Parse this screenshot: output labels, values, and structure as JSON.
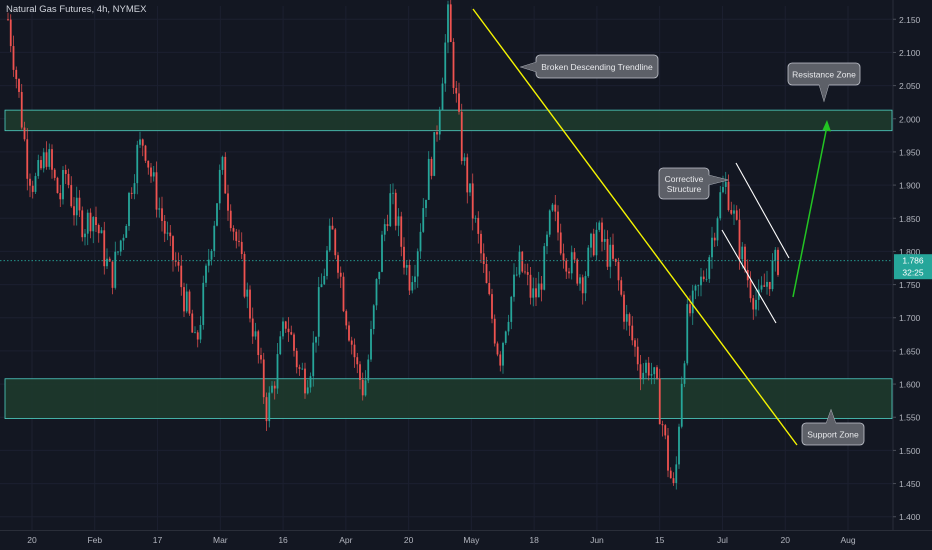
{
  "header": {
    "title": "Natural Gas Futures, 4h, NYMEX"
  },
  "colors": {
    "background": "#131722",
    "up_candle": "#26a69a",
    "down_candle": "#ef5350",
    "zone_fill": "#1e3a2c",
    "zone_border": "#4fd1c5",
    "trendline": "#f5f500",
    "channel": "#ffffff",
    "projection_arrow": "#22c522",
    "price_badge": "#26a69a",
    "callout_bg": "#5d6068"
  },
  "chart_data": {
    "type": "candlestick",
    "title": "Natural Gas Futures, 4h, NYMEX",
    "x_ticks": [
      "20",
      "Feb",
      "17",
      "Mar",
      "16",
      "Apr",
      "20",
      "May",
      "18",
      "Jun",
      "15",
      "Jul",
      "20",
      "Aug"
    ],
    "y_ticks": [
      "2.150",
      "2.100",
      "2.050",
      "2.000",
      "1.950",
      "1.900",
      "1.850",
      "1.800",
      "1.750",
      "1.700",
      "1.650",
      "1.600",
      "1.550",
      "1.500",
      "1.450",
      "1.400"
    ],
    "ylim": [
      1.38,
      2.17
    ],
    "current_price": {
      "value": 1.786,
      "label": "1.786",
      "countdown": "32:25"
    },
    "zones": [
      {
        "name": "Resistance Zone",
        "low": 1.982,
        "high": 2.013
      },
      {
        "name": "Support Zone",
        "low": 1.548,
        "high": 1.608
      }
    ],
    "annotations": [
      {
        "text": "Broken Descending Trendline"
      },
      {
        "text": "Resistance Zone"
      },
      {
        "text": "Corrective Structure"
      },
      {
        "text": "Support Zone"
      }
    ],
    "closes": [
      2.15,
      2.085,
      2.01,
      1.93,
      1.9,
      1.92,
      1.95,
      1.91,
      1.88,
      1.92,
      1.87,
      1.85,
      1.84,
      1.86,
      1.83,
      1.79,
      1.76,
      1.8,
      1.84,
      1.9,
      1.95,
      1.97,
      1.92,
      1.88,
      1.84,
      1.8,
      1.78,
      1.74,
      1.7,
      1.65,
      1.72,
      1.79,
      1.86,
      1.93,
      1.88,
      1.83,
      1.78,
      1.73,
      1.68,
      1.62,
      1.56,
      1.6,
      1.65,
      1.7,
      1.66,
      1.62,
      1.61,
      1.64,
      1.72,
      1.78,
      1.83,
      1.79,
      1.72,
      1.67,
      1.62,
      1.59,
      1.66,
      1.75,
      1.83,
      1.88,
      1.85,
      1.8,
      1.76,
      1.79,
      1.86,
      1.92,
      1.96,
      2.06,
      2.15,
      2.05,
      1.96,
      1.9,
      1.85,
      1.8,
      1.74,
      1.69,
      1.64,
      1.7,
      1.74,
      1.78,
      1.76,
      1.73,
      1.74,
      1.79,
      1.86,
      1.83,
      1.8,
      1.78,
      1.77,
      1.76,
      1.8,
      1.83,
      1.81,
      1.79,
      1.77,
      1.72,
      1.68,
      1.65,
      1.62,
      1.63,
      1.6,
      1.55,
      1.48,
      1.43,
      1.6,
      1.7,
      1.72,
      1.75,
      1.78,
      1.83,
      1.88,
      1.9,
      1.86,
      1.81,
      1.77,
      1.74,
      1.72,
      1.75,
      1.77,
      1.786
    ]
  }
}
